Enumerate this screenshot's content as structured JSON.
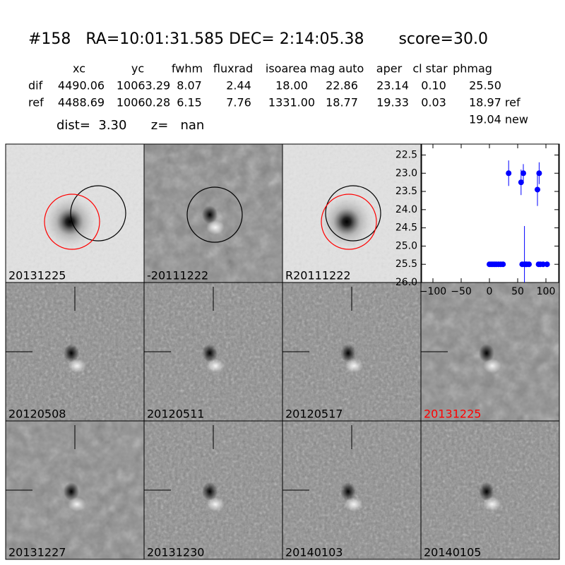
{
  "header": {
    "title": "#158   RA=10:01:31.585 DEC= 2:14:05.38       score=30.0",
    "dist": "dist=  3.30      z=   nan"
  },
  "table": {
    "columns": [
      "xc",
      "yc",
      "fwhm",
      "fluxrad",
      "isoarea",
      "mag auto",
      "aper",
      "cl star",
      "phmag"
    ],
    "rows": [
      [
        "dif",
        "4490.06",
        "10063.29",
        "8.07",
        "2.44",
        "18.00",
        "22.86",
        "23.14",
        "0.10",
        "25.50"
      ],
      [
        "ref",
        "4488.69",
        "10060.28",
        "6.15",
        "7.76",
        "1331.00",
        "18.77",
        "19.33",
        "0.03",
        "18.97 ref"
      ]
    ],
    "note": "19.04 new"
  },
  "panels": [
    "20131225",
    "-20111222",
    "R20111222",
    "20120508",
    "20120511",
    "20120517",
    "20131225",
    "20131227",
    "20131230",
    "20140103",
    "20140105"
  ],
  "chart_data": {
    "type": "scatter",
    "color": "#0000ff",
    "x": [
      0,
      3,
      6,
      9,
      12,
      16,
      20,
      24,
      34,
      56,
      58,
      60,
      62,
      64,
      66,
      70,
      85,
      87,
      88,
      90,
      95,
      102
    ],
    "y": [
      25.5,
      25.5,
      25.5,
      25.5,
      25.5,
      25.5,
      25.5,
      25.5,
      23.0,
      23.25,
      25.5,
      23.0,
      25.5,
      25.5,
      25.5,
      25.5,
      23.45,
      25.5,
      23.0,
      25.5,
      25.5,
      25.5
    ],
    "err": [
      0.05,
      0.05,
      0.05,
      0.05,
      0.05,
      0.05,
      0.05,
      0.05,
      0.35,
      0.35,
      0.05,
      0.25,
      1.05,
      0.05,
      0.05,
      0.05,
      0.45,
      0.05,
      0.3,
      0.05,
      0.05,
      0.05
    ],
    "xlim": [
      -120,
      122.5
    ],
    "ylim": [
      22.2,
      26.0
    ],
    "y_inverted": true,
    "xticks": [
      {
        "value": -100,
        "label": "−100"
      },
      {
        "value": -50,
        "label": "−50"
      },
      0,
      50,
      100
    ],
    "yticks": [
      22.5,
      {
        "value": 23,
        "label": "23.0"
      },
      23.5,
      {
        "value": 24,
        "label": "24.0"
      },
      24.5,
      {
        "value": 25,
        "label": "25.0"
      },
      25.5,
      {
        "value": 26,
        "label": "26.0"
      }
    ]
  }
}
